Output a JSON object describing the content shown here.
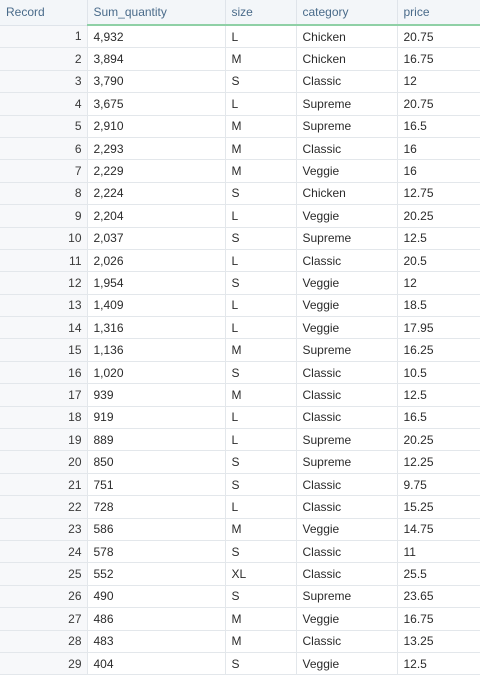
{
  "columns": {
    "record": "Record",
    "sum_quantity": "Sum_quantity",
    "size": "size",
    "category": "category",
    "price": "price"
  },
  "rows": [
    {
      "record": "1",
      "sum_quantity": "4,932",
      "size": "L",
      "category": "Chicken",
      "price": "20.75"
    },
    {
      "record": "2",
      "sum_quantity": "3,894",
      "size": "M",
      "category": "Chicken",
      "price": "16.75"
    },
    {
      "record": "3",
      "sum_quantity": "3,790",
      "size": "S",
      "category": "Classic",
      "price": "12"
    },
    {
      "record": "4",
      "sum_quantity": "3,675",
      "size": "L",
      "category": "Supreme",
      "price": "20.75"
    },
    {
      "record": "5",
      "sum_quantity": "2,910",
      "size": "M",
      "category": "Supreme",
      "price": "16.5"
    },
    {
      "record": "6",
      "sum_quantity": "2,293",
      "size": "M",
      "category": "Classic",
      "price": "16"
    },
    {
      "record": "7",
      "sum_quantity": "2,229",
      "size": "M",
      "category": "Veggie",
      "price": "16"
    },
    {
      "record": "8",
      "sum_quantity": "2,224",
      "size": "S",
      "category": "Chicken",
      "price": "12.75"
    },
    {
      "record": "9",
      "sum_quantity": "2,204",
      "size": "L",
      "category": "Veggie",
      "price": "20.25"
    },
    {
      "record": "10",
      "sum_quantity": "2,037",
      "size": "S",
      "category": "Supreme",
      "price": "12.5"
    },
    {
      "record": "11",
      "sum_quantity": "2,026",
      "size": "L",
      "category": "Classic",
      "price": "20.5"
    },
    {
      "record": "12",
      "sum_quantity": "1,954",
      "size": "S",
      "category": "Veggie",
      "price": "12"
    },
    {
      "record": "13",
      "sum_quantity": "1,409",
      "size": "L",
      "category": "Veggie",
      "price": "18.5"
    },
    {
      "record": "14",
      "sum_quantity": "1,316",
      "size": "L",
      "category": "Veggie",
      "price": "17.95"
    },
    {
      "record": "15",
      "sum_quantity": "1,136",
      "size": "M",
      "category": "Supreme",
      "price": "16.25"
    },
    {
      "record": "16",
      "sum_quantity": "1,020",
      "size": "S",
      "category": "Classic",
      "price": "10.5"
    },
    {
      "record": "17",
      "sum_quantity": "939",
      "size": "M",
      "category": "Classic",
      "price": "12.5"
    },
    {
      "record": "18",
      "sum_quantity": "919",
      "size": "L",
      "category": "Classic",
      "price": "16.5"
    },
    {
      "record": "19",
      "sum_quantity": "889",
      "size": "L",
      "category": "Supreme",
      "price": "20.25"
    },
    {
      "record": "20",
      "sum_quantity": "850",
      "size": "S",
      "category": "Supreme",
      "price": "12.25"
    },
    {
      "record": "21",
      "sum_quantity": "751",
      "size": "S",
      "category": "Classic",
      "price": "9.75"
    },
    {
      "record": "22",
      "sum_quantity": "728",
      "size": "L",
      "category": "Classic",
      "price": "15.25"
    },
    {
      "record": "23",
      "sum_quantity": "586",
      "size": "M",
      "category": "Veggie",
      "price": "14.75"
    },
    {
      "record": "24",
      "sum_quantity": "578",
      "size": "S",
      "category": "Classic",
      "price": "11"
    },
    {
      "record": "25",
      "sum_quantity": "552",
      "size": "XL",
      "category": "Classic",
      "price": "25.5"
    },
    {
      "record": "26",
      "sum_quantity": "490",
      "size": "S",
      "category": "Supreme",
      "price": "23.65"
    },
    {
      "record": "27",
      "sum_quantity": "486",
      "size": "M",
      "category": "Veggie",
      "price": "16.75"
    },
    {
      "record": "28",
      "sum_quantity": "483",
      "size": "M",
      "category": "Classic",
      "price": "13.25"
    },
    {
      "record": "29",
      "sum_quantity": "404",
      "size": "S",
      "category": "Veggie",
      "price": "12.5"
    }
  ],
  "colors": {
    "header_text": "#4a6b8a",
    "header_underline": "#8fd0a6",
    "grid_line": "#e3e7eb"
  }
}
